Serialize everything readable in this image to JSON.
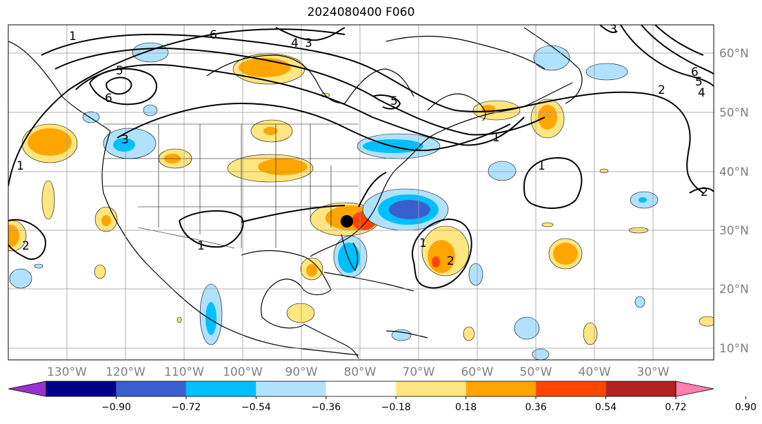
{
  "title": "2024080400 F060",
  "map": {
    "longitude_labels": [
      "130°W",
      "120°W",
      "110°W",
      "100°W",
      "90°W",
      "80°W",
      "70°W",
      "60°W",
      "50°W",
      "40°W",
      "30°W"
    ],
    "latitude_labels": [
      "60°N",
      "50°N",
      "40°N",
      "30°N",
      "20°N",
      "10°N"
    ],
    "extent": {
      "lon_min": -140,
      "lon_max": -20,
      "lat_min": 8,
      "lat_max": 65
    },
    "marker": {
      "lon": -81.1,
      "lat": 31.4,
      "color": "#000000"
    }
  },
  "contour_labels": [
    "6",
    "4",
    "3",
    "5",
    "6",
    "5",
    "3",
    "1",
    "6",
    "5",
    "4",
    "2",
    "1",
    "1",
    "1",
    "2",
    "2",
    "1",
    "2",
    "3",
    "1"
  ],
  "colorbar": {
    "ticks": [
      "−0.90",
      "−0.72",
      "−0.54",
      "−0.36",
      "−0.18",
      "0.18",
      "0.36",
      "0.54",
      "0.72",
      "0.90"
    ],
    "colors": [
      "#9932cc",
      "#00008b",
      "#3a5fcd",
      "#00bfff",
      "#b0e2ff",
      "#ffffff",
      "#ffe680",
      "#ffa500",
      "#ff4500",
      "#b22222",
      "#ff7fae"
    ],
    "extend": "both"
  }
}
